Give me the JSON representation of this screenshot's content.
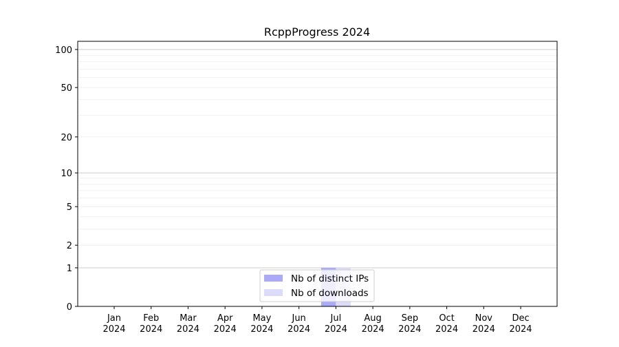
{
  "chart_data": {
    "type": "bar",
    "title": "RcppProgress 2024",
    "xlabel": "",
    "ylabel": "",
    "y_scale": "log(1+y)",
    "ylim": [
      0,
      116
    ],
    "yticks": [
      0,
      1,
      2,
      5,
      10,
      20,
      50,
      100
    ],
    "grid": true,
    "legend_position": "bottom-center",
    "categories": [
      "Jan\n2024",
      "Feb\n2024",
      "Mar\n2024",
      "Apr\n2024",
      "May\n2024",
      "Jun\n2024",
      "Jul\n2024",
      "Aug\n2024",
      "Sep\n2024",
      "Oct\n2024",
      "Nov\n2024",
      "Dec\n2024"
    ],
    "series": [
      {
        "name": "Nb of distinct IPs",
        "color": "#aaaaf8",
        "values": [
          0,
          0,
          0,
          0,
          0,
          0,
          1,
          0,
          0,
          0,
          0,
          0
        ]
      },
      {
        "name": "Nb of downloads",
        "color": "#dcdcfa",
        "values": [
          0,
          0,
          0,
          0,
          0,
          0,
          1,
          0,
          0,
          0,
          0,
          0
        ]
      }
    ]
  }
}
